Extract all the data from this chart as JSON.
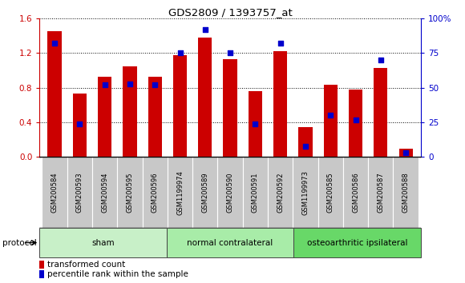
{
  "title": "GDS2809 / 1393757_at",
  "samples": [
    "GSM200584",
    "GSM200593",
    "GSM200594",
    "GSM200595",
    "GSM200596",
    "GSM1199974",
    "GSM200589",
    "GSM200590",
    "GSM200591",
    "GSM200592",
    "GSM1199973",
    "GSM200585",
    "GSM200586",
    "GSM200587",
    "GSM200588"
  ],
  "red_values": [
    1.45,
    0.73,
    0.93,
    1.05,
    0.93,
    1.18,
    1.38,
    1.13,
    0.76,
    1.22,
    0.35,
    0.83,
    0.78,
    1.03,
    0.1
  ],
  "blue_values": [
    82,
    24,
    52,
    53,
    52,
    75,
    92,
    75,
    24,
    82,
    8,
    30,
    27,
    70,
    3
  ],
  "groups": [
    {
      "label": "sham",
      "start": 0,
      "end": 5,
      "color": "#c8f0c8"
    },
    {
      "label": "normal contralateral",
      "start": 5,
      "end": 10,
      "color": "#a8eca8"
    },
    {
      "label": "osteoarthritic ipsilateral",
      "start": 10,
      "end": 15,
      "color": "#68d868"
    }
  ],
  "left_ylim": [
    0,
    1.6
  ],
  "right_ylim": [
    0,
    100
  ],
  "left_yticks": [
    0,
    0.4,
    0.8,
    1.2,
    1.6
  ],
  "right_yticks": [
    0,
    25,
    50,
    75,
    100
  ],
  "right_yticklabels": [
    "0",
    "25",
    "50",
    "75",
    "100%"
  ],
  "bar_color": "#cc0000",
  "dot_color": "#0000cc",
  "bar_width": 0.55,
  "dot_size": 22,
  "protocol_label": "protocol",
  "legend_items": [
    {
      "label": "transformed count",
      "color": "#cc0000"
    },
    {
      "label": "percentile rank within the sample",
      "color": "#0000cc"
    }
  ],
  "left_axis_color": "#cc0000",
  "right_axis_color": "#0000cc",
  "ticklabel_gray": "#cccccc",
  "title_fontsize": 9.5,
  "label_fontsize": 7.5,
  "sample_fontsize": 6.0
}
